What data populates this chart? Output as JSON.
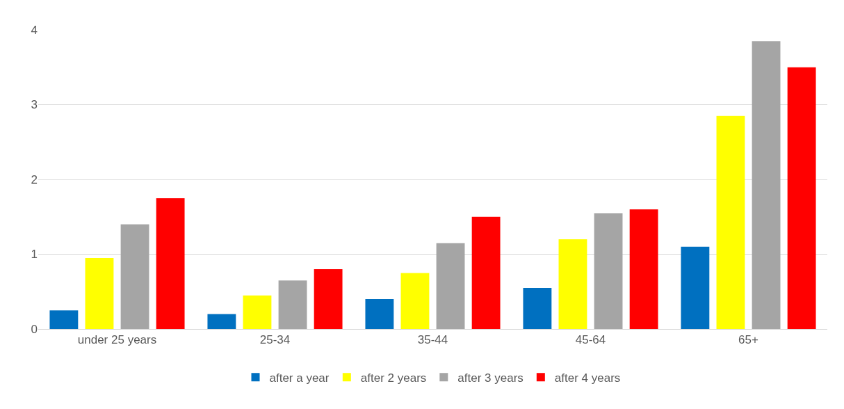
{
  "chart_data": {
    "type": "bar",
    "categories": [
      "under 25 years",
      "25-34",
      "35-44",
      "45-64",
      "65+"
    ],
    "series": [
      {
        "name": "after a year",
        "color": "#0070c0",
        "values": [
          0.25,
          0.2,
          0.4,
          0.55,
          1.1
        ]
      },
      {
        "name": "after 2 years",
        "color": "#ffff00",
        "values": [
          0.95,
          0.45,
          0.75,
          1.2,
          2.85
        ]
      },
      {
        "name": "after 3 years",
        "color": "#a5a5a5",
        "values": [
          1.4,
          0.65,
          1.15,
          1.55,
          3.85
        ]
      },
      {
        "name": "after 4 years",
        "color": "#ff0000",
        "values": [
          1.75,
          0.8,
          1.5,
          1.6,
          3.5
        ]
      }
    ],
    "ylim": [
      0,
      4
    ],
    "yticks": [
      0,
      1,
      2,
      3,
      4
    ],
    "grid": "y",
    "legend": "bottom"
  }
}
